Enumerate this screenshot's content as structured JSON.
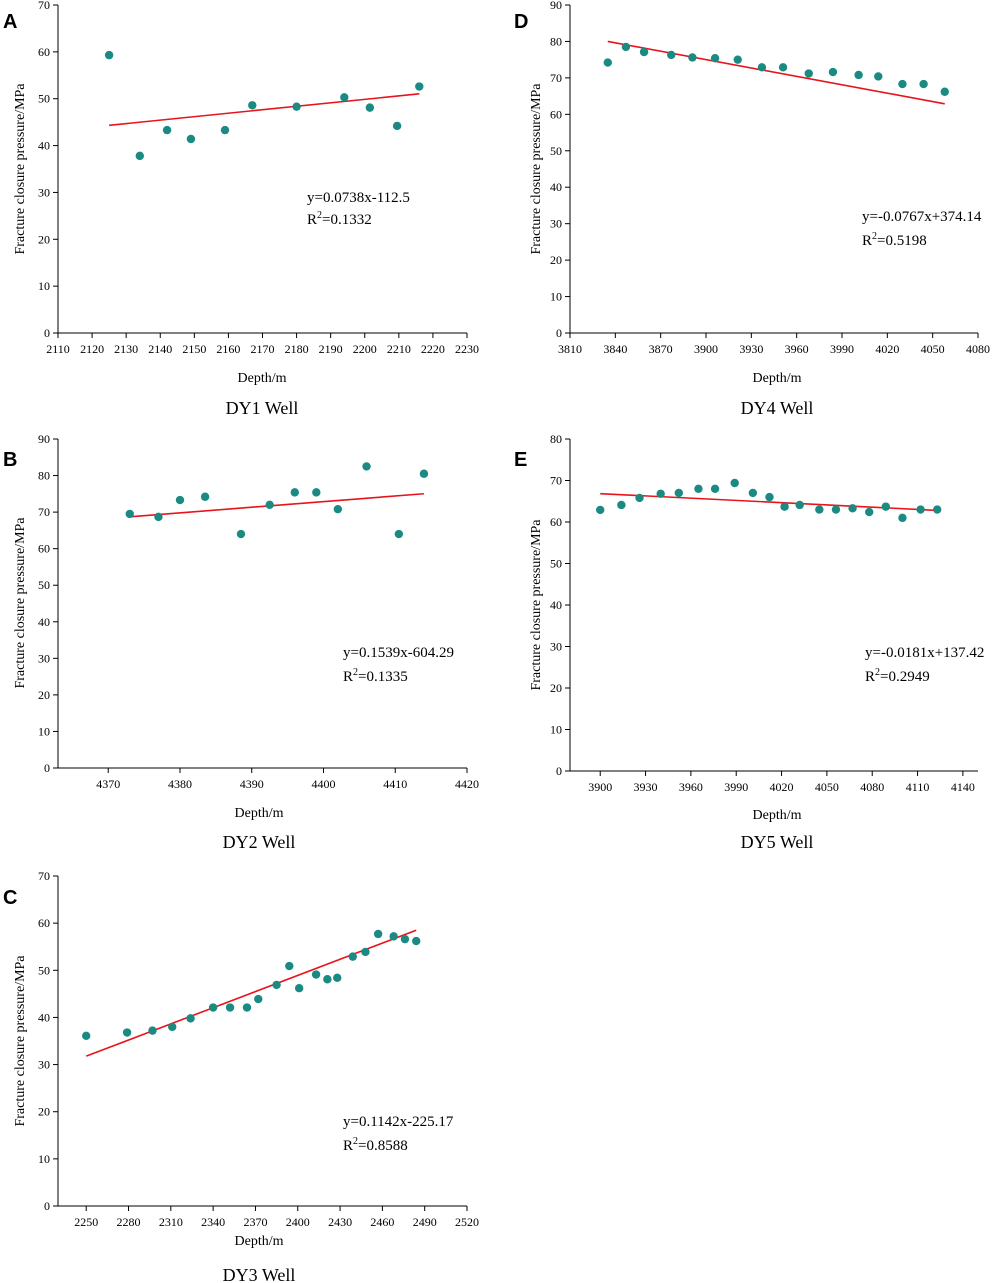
{
  "colors": {
    "point": "#1a8a82",
    "fit_line": "#e8141b",
    "axis": "#000000"
  },
  "chart_data": [
    {
      "panel_label": "A",
      "well_caption": "DY1 Well",
      "type": "scatter",
      "xlabel": "Depth/m",
      "ylabel": "Fracture closure pressure/MPa",
      "xlim": [
        2110,
        2230
      ],
      "ylim": [
        0,
        70
      ],
      "xticks": [
        2110,
        2120,
        2130,
        2140,
        2150,
        2160,
        2170,
        2180,
        2190,
        2200,
        2210,
        2220,
        2230
      ],
      "yticks": [
        0,
        10,
        20,
        30,
        40,
        50,
        60,
        70
      ],
      "points": [
        [
          2125,
          59.3
        ],
        [
          2134,
          37.8
        ],
        [
          2142,
          43.3
        ],
        [
          2149,
          41.4
        ],
        [
          2159,
          43.3
        ],
        [
          2167,
          48.6
        ],
        [
          2180,
          48.3
        ],
        [
          2194,
          50.3
        ],
        [
          2201.5,
          48.1
        ],
        [
          2209.5,
          44.2
        ],
        [
          2216,
          52.6
        ]
      ],
      "fit": {
        "slope": 0.0738,
        "intercept": -112.5,
        "x_range": [
          2125,
          2216
        ]
      },
      "equation": "y=0.0738x-112.5",
      "r2_prefix": "R",
      "r2_sup": "2",
      "r2_value": "=0.1332"
    },
    {
      "panel_label": "B",
      "well_caption": "DY2 Well",
      "type": "scatter",
      "xlabel": "Depth/m",
      "ylabel": "Fracture closure pressure/MPa",
      "xlim": [
        4363,
        4420
      ],
      "ylim": [
        0,
        90
      ],
      "xticks": [
        4370,
        4380,
        4390,
        4400,
        4410,
        4420
      ],
      "yticks": [
        0,
        10,
        20,
        30,
        40,
        50,
        60,
        70,
        80,
        90
      ],
      "points": [
        [
          4373,
          69.5
        ],
        [
          4377,
          68.7
        ],
        [
          4380,
          73.3
        ],
        [
          4383.5,
          74.2
        ],
        [
          4388.5,
          64.0
        ],
        [
          4392.5,
          72.0
        ],
        [
          4396,
          75.4
        ],
        [
          4399,
          75.4
        ],
        [
          4402,
          70.8
        ],
        [
          4406,
          82.5
        ],
        [
          4410.5,
          64.0
        ],
        [
          4414,
          80.5
        ]
      ],
      "fit": {
        "slope": 0.1539,
        "intercept": -604.29,
        "x_range": [
          4373,
          4414
        ]
      },
      "equation": "y=0.1539x-604.29",
      "r2_prefix": "R",
      "r2_sup": "2",
      "r2_value": "=0.1335"
    },
    {
      "panel_label": "C",
      "well_caption": "DY3 Well",
      "type": "scatter",
      "xlabel": "Depth/m",
      "ylabel": "Fracture closure pressure/MPa",
      "xlim": [
        2230,
        2520
      ],
      "ylim": [
        0,
        70
      ],
      "xticks": [
        2250,
        2280,
        2310,
        2340,
        2370,
        2400,
        2430,
        2460,
        2490,
        2520
      ],
      "yticks": [
        0,
        10,
        20,
        30,
        40,
        50,
        60,
        70
      ],
      "points": [
        [
          2250,
          36.1
        ],
        [
          2279,
          36.8
        ],
        [
          2297,
          37.2
        ],
        [
          2311,
          38.0
        ],
        [
          2324,
          39.8
        ],
        [
          2340,
          42.1
        ],
        [
          2352,
          42.1
        ],
        [
          2364,
          42.1
        ],
        [
          2372,
          43.9
        ],
        [
          2385,
          46.9
        ],
        [
          2394,
          50.9
        ],
        [
          2401,
          46.2
        ],
        [
          2413,
          49.1
        ],
        [
          2421,
          48.1
        ],
        [
          2428,
          48.4
        ],
        [
          2439,
          52.9
        ],
        [
          2448,
          53.9
        ],
        [
          2457,
          57.7
        ],
        [
          2468,
          57.2
        ],
        [
          2476,
          56.6
        ],
        [
          2484,
          56.2
        ]
      ],
      "fit": {
        "slope": 0.1142,
        "intercept": -225.17,
        "x_range": [
          2250,
          2484
        ]
      },
      "equation": "y=0.1142x-225.17",
      "r2_prefix": "R",
      "r2_sup": "2",
      "r2_value": "=0.8588"
    },
    {
      "panel_label": "D",
      "well_caption": "DY4 Well",
      "type": "scatter",
      "xlabel": "Depth/m",
      "ylabel": "Fracture closure pressure/MPa",
      "xlim": [
        3810,
        4080
      ],
      "ylim": [
        0,
        90
      ],
      "xticks": [
        3810,
        3840,
        3870,
        3900,
        3930,
        3960,
        3990,
        4020,
        4050,
        4080
      ],
      "yticks": [
        0,
        10,
        20,
        30,
        40,
        50,
        60,
        70,
        80,
        90
      ],
      "points": [
        [
          3835,
          74.2
        ],
        [
          3847,
          78.5
        ],
        [
          3859,
          77.1
        ],
        [
          3877,
          76.3
        ],
        [
          3891,
          75.6
        ],
        [
          3906,
          75.4
        ],
        [
          3921,
          75.0
        ],
        [
          3937,
          72.9
        ],
        [
          3951,
          72.9
        ],
        [
          3968,
          71.2
        ],
        [
          3984,
          71.6
        ],
        [
          4001,
          70.8
        ],
        [
          4014,
          70.4
        ],
        [
          4030,
          68.3
        ],
        [
          4044,
          68.3
        ],
        [
          4058,
          66.2
        ]
      ],
      "fit": {
        "slope": -0.0767,
        "intercept": 374.14,
        "x_range": [
          3835,
          4058
        ]
      },
      "equation": "y=-0.0767x+374.14",
      "r2_prefix": "R",
      "r2_sup": "2",
      "r2_value": "=0.5198"
    },
    {
      "panel_label": "E",
      "well_caption": "DY5 Well",
      "type": "scatter",
      "xlabel": "Depth/m",
      "ylabel": "Fracture closure pressure/MPa",
      "xlim": [
        3880,
        4150
      ],
      "ylim": [
        0,
        80
      ],
      "xticks": [
        3900,
        3930,
        3960,
        3990,
        4020,
        4050,
        4080,
        4110,
        4140
      ],
      "yticks": [
        0,
        10,
        20,
        30,
        40,
        50,
        60,
        70,
        80
      ],
      "points": [
        [
          3900,
          62.9
        ],
        [
          3914,
          64.1
        ],
        [
          3926,
          65.8
        ],
        [
          3940,
          66.8
        ],
        [
          3952,
          67.0
        ],
        [
          3965,
          68.0
        ],
        [
          3976,
          68.0
        ],
        [
          3989,
          69.4
        ],
        [
          4001,
          67.0
        ],
        [
          4012,
          66.0
        ],
        [
          4022,
          63.7
        ],
        [
          4032,
          64.1
        ],
        [
          4045,
          63.0
        ],
        [
          4056,
          63.0
        ],
        [
          4067,
          63.3
        ],
        [
          4078,
          62.4
        ],
        [
          4089,
          63.7
        ],
        [
          4100,
          61.0
        ],
        [
          4112,
          63.0
        ],
        [
          4123,
          63.0
        ]
      ],
      "fit": {
        "slope": -0.0181,
        "intercept": 137.42,
        "x_range": [
          3900,
          4123
        ]
      },
      "equation": "y=-0.0181x+137.42",
      "r2_prefix": "R",
      "r2_sup": "2",
      "r2_value": "=0.2949"
    }
  ]
}
